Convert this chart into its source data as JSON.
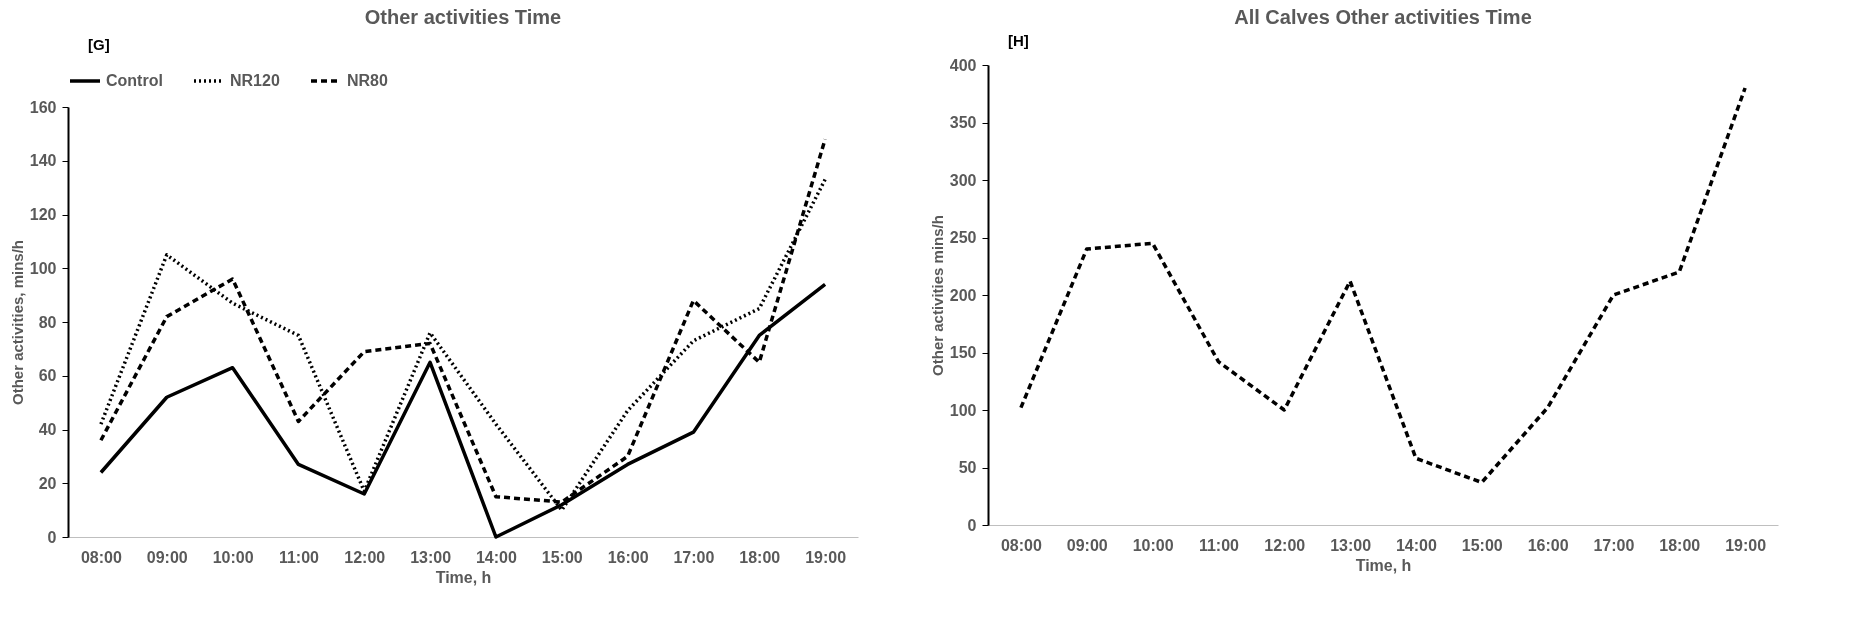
{
  "chart_data": [
    {
      "type": "line",
      "title": "Other activities Time",
      "annotations": [
        "[G]"
      ],
      "xlabel": "Time, h",
      "ylabel": "Other activities, mins/h",
      "categories": [
        "08:00",
        "09:00",
        "10:00",
        "11:00",
        "12:00",
        "13:00",
        "14:00",
        "15:00",
        "16:00",
        "17:00",
        "18:00",
        "19:00"
      ],
      "series": [
        {
          "name": "Control",
          "color": "#000000",
          "line_style": "solid",
          "values": [
            24,
            52,
            63,
            27,
            16,
            65,
            0,
            12,
            27,
            39,
            75,
            94
          ]
        },
        {
          "name": "NR120",
          "color": "#000000",
          "line_style": "dotted",
          "values": [
            42,
            105,
            87,
            75,
            17,
            76,
            42,
            10,
            47,
            73,
            85,
            133
          ]
        },
        {
          "name": "NR80",
          "color": "#000000",
          "line_style": "dashed",
          "values": [
            36,
            82,
            96,
            43,
            69,
            72,
            15,
            13,
            30,
            88,
            65,
            148
          ]
        }
      ],
      "ylim": [
        0,
        160
      ],
      "yticks": [
        0,
        20,
        40,
        60,
        80,
        100,
        120,
        140,
        160
      ],
      "legend": "top",
      "grid": false
    },
    {
      "type": "line",
      "title": "All Calves Other activities Time",
      "annotations": [
        "[H]"
      ],
      "xlabel": "Time, h",
      "ylabel": "Other activities mins/h",
      "categories": [
        "08:00",
        "09:00",
        "10:00",
        "11:00",
        "12:00",
        "13:00",
        "14:00",
        "15:00",
        "16:00",
        "17:00",
        "18:00",
        "19:00"
      ],
      "series": [
        {
          "color": "#000000",
          "line_style": "dashed",
          "values": [
            102,
            240,
            245,
            142,
            100,
            212,
            58,
            37,
            102,
            200,
            220,
            380
          ]
        }
      ],
      "ylim": [
        0,
        400
      ],
      "yticks": [
        0,
        50,
        100,
        150,
        200,
        250,
        300,
        350,
        400
      ],
      "legend": false,
      "grid": false
    }
  ]
}
